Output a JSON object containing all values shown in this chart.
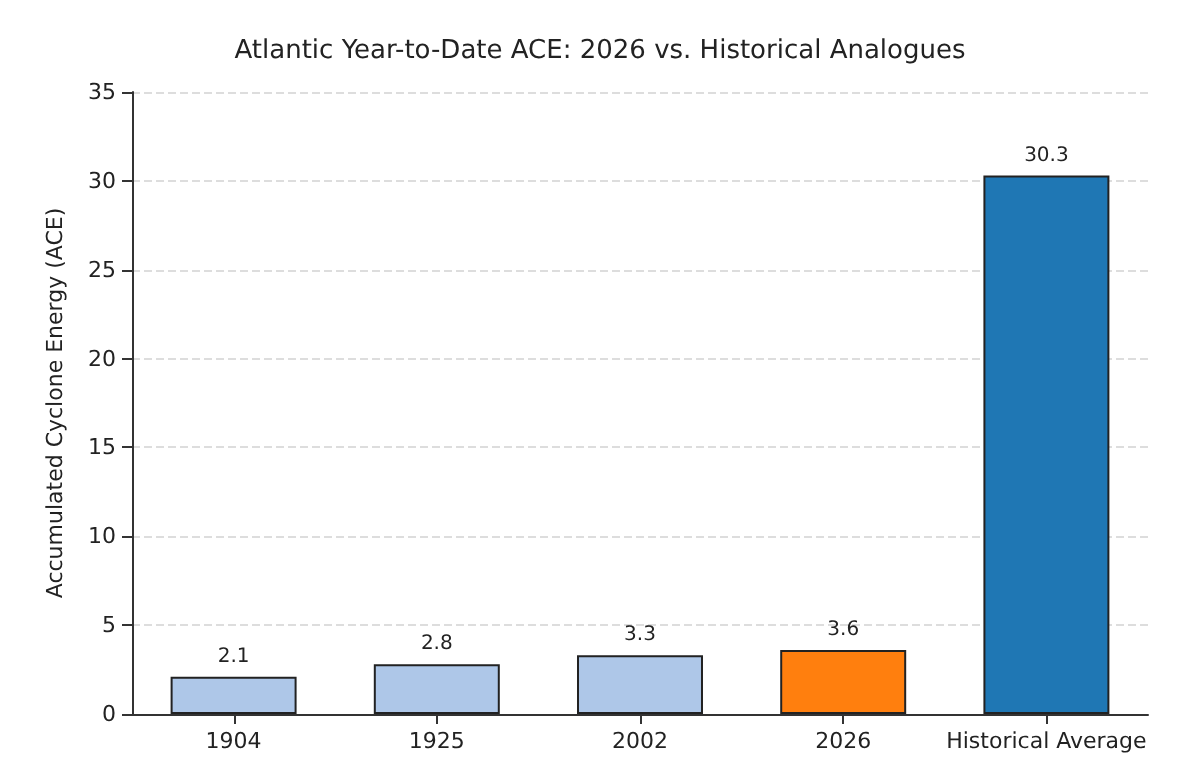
{
  "chart_data": {
    "type": "bar",
    "title": "Atlantic Year-to-Date ACE: 2026 vs. Historical Analogues",
    "ylabel": "Accumulated Cyclone Energy (ACE)",
    "categories": [
      "1904",
      "1925",
      "2002",
      "2026",
      "Historical Average"
    ],
    "values": [
      2.1,
      2.8,
      3.3,
      3.6,
      30.3
    ],
    "colors": [
      "#aec7e8",
      "#aec7e8",
      "#aec7e8",
      "#ff7f0e",
      "#1f77b4"
    ],
    "ylim": [
      0,
      35
    ],
    "yticks": [
      0,
      5,
      10,
      15,
      20,
      25,
      30,
      35
    ],
    "grid": "y",
    "data_labels": true
  }
}
